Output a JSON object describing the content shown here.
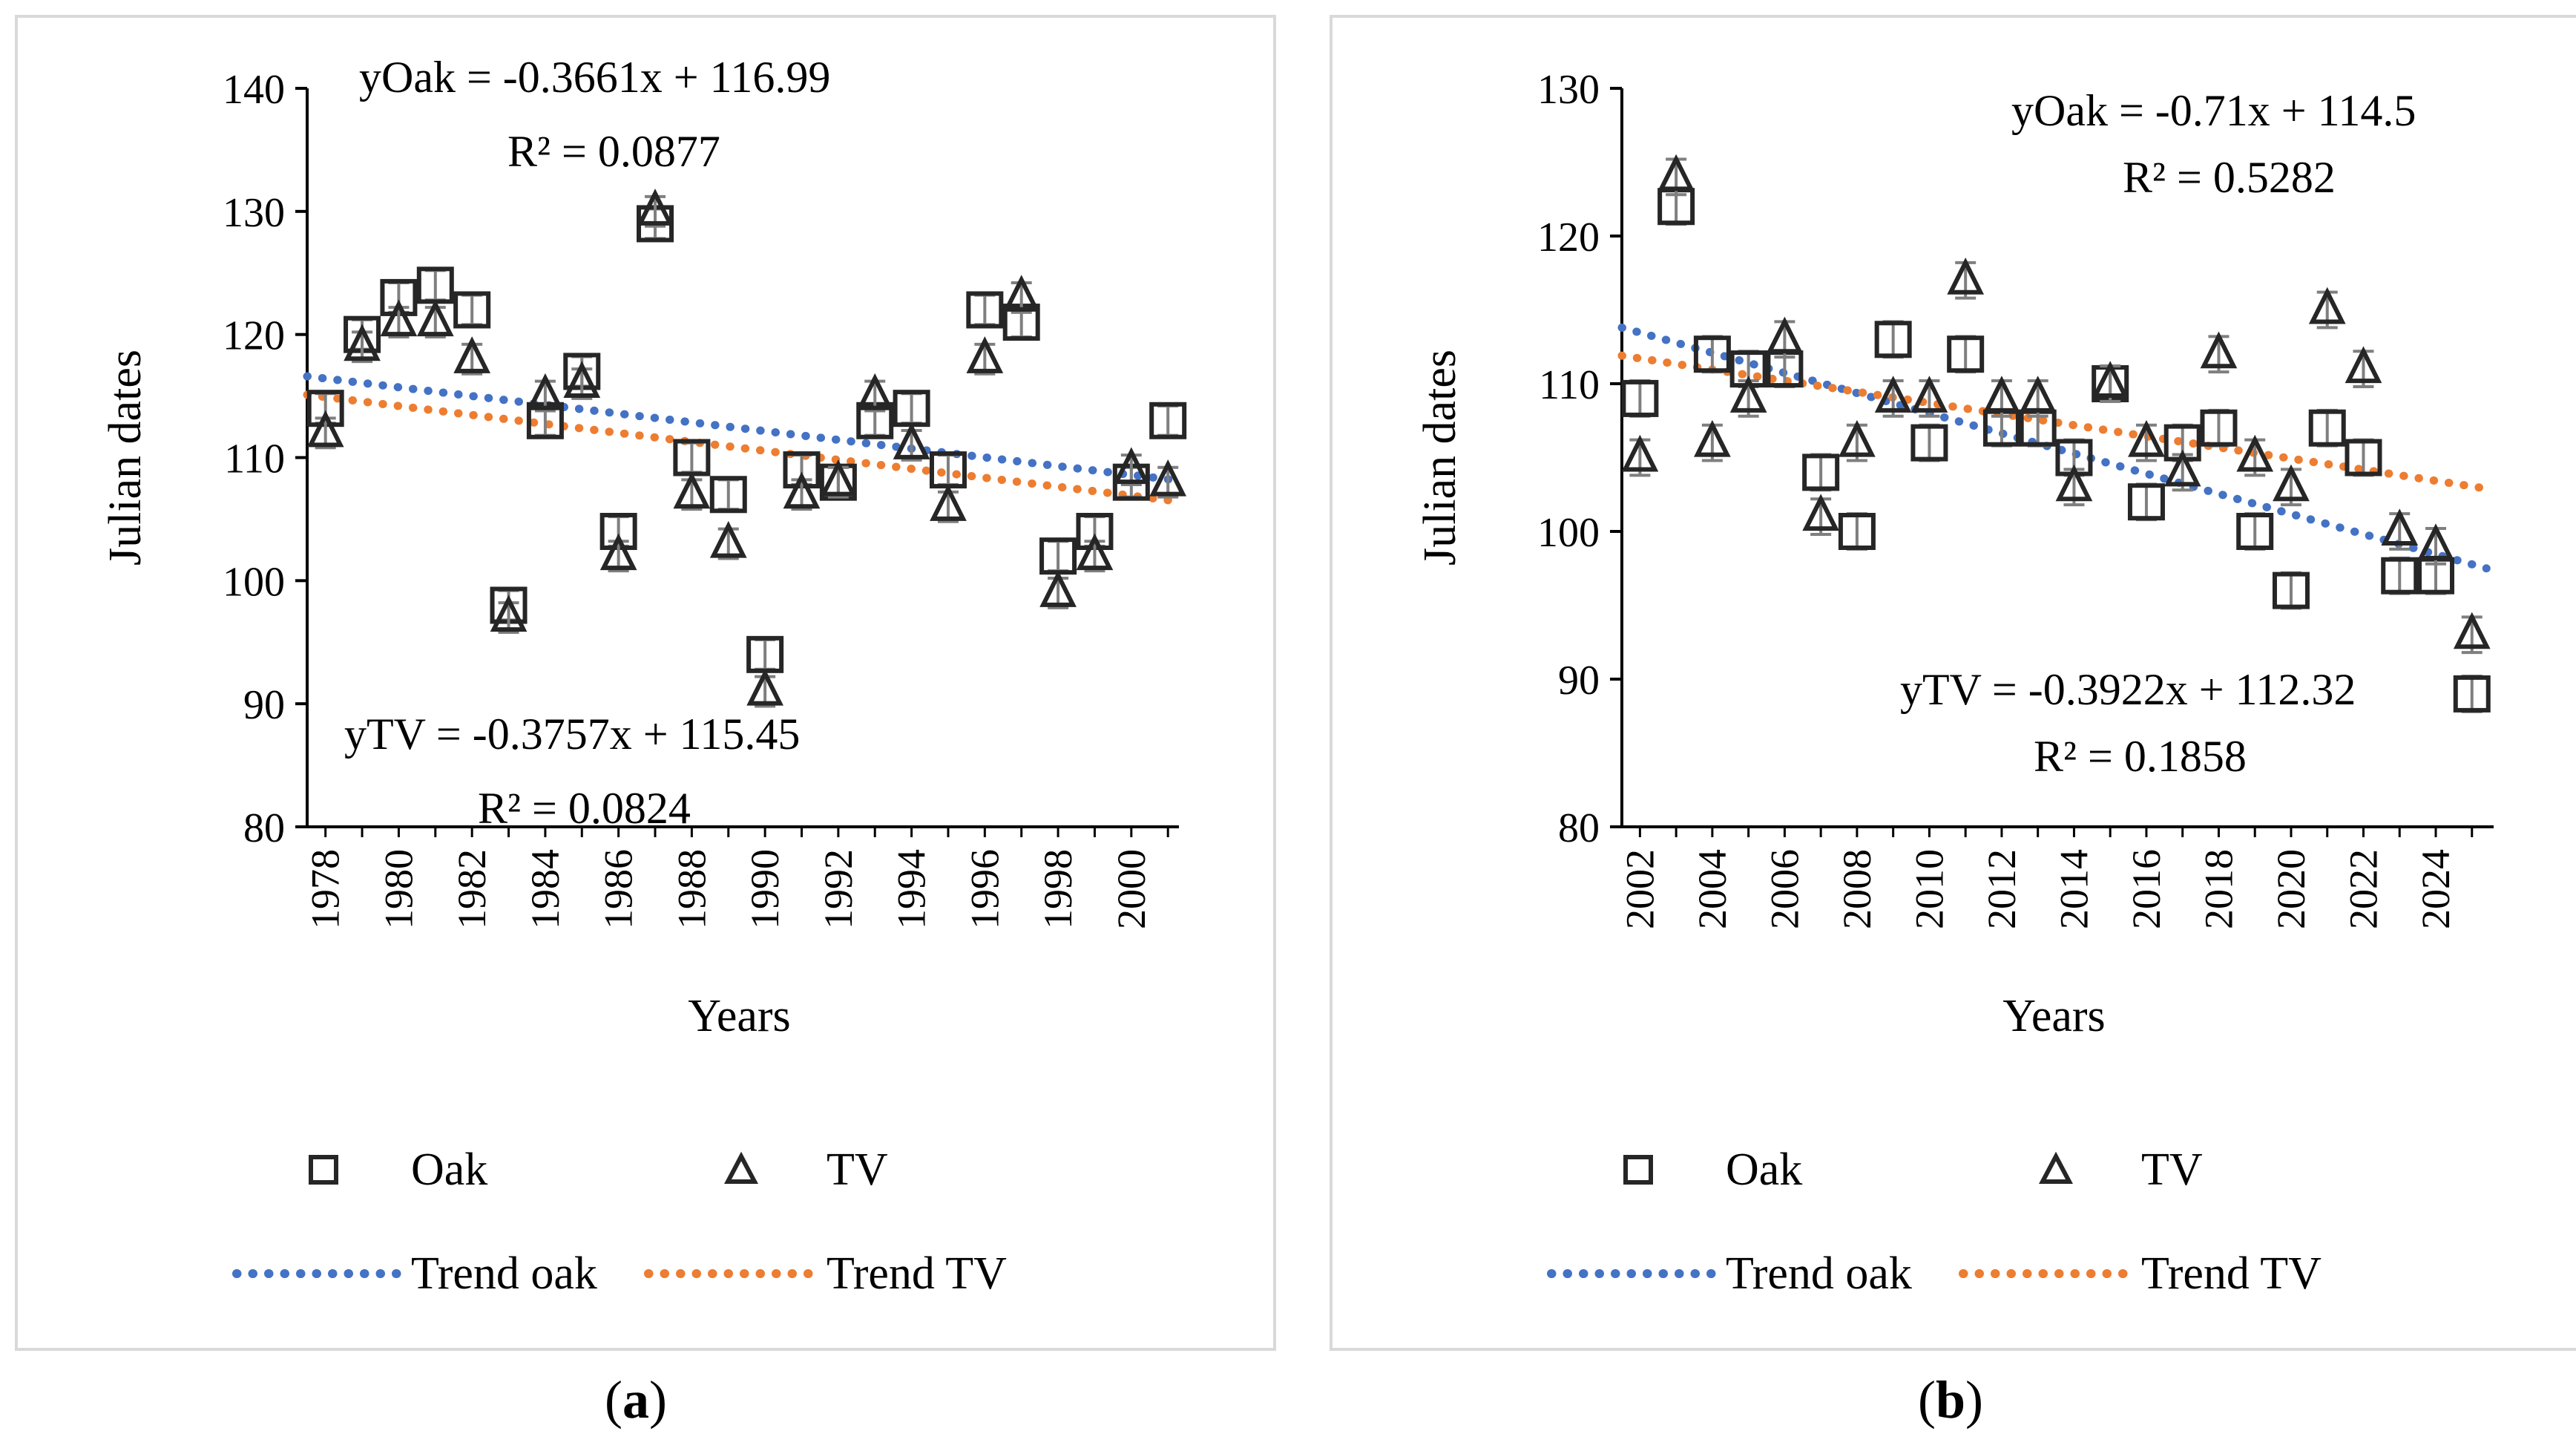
{
  "chart_data": [
    {
      "type": "scatter",
      "panel_label": "a",
      "xlabel": "Years",
      "ylabel": "Julian dates",
      "ylim": [
        80,
        140
      ],
      "yticks": [
        80,
        90,
        100,
        110,
        120,
        130,
        140
      ],
      "xlim": [
        1977.5,
        2001.3
      ],
      "xticks": [
        "1978",
        "1980",
        "1982",
        "1984",
        "1986",
        "1988",
        "1990",
        "1992",
        "1994",
        "1996",
        "1998",
        "2000"
      ],
      "years": [
        1978,
        1979,
        1980,
        1981,
        1982,
        1983,
        1984,
        1985,
        1986,
        1987,
        1988,
        1989,
        1990,
        1991,
        1992,
        1993,
        1994,
        1995,
        1996,
        1997,
        1998,
        1999,
        2000,
        2001
      ],
      "series": [
        {
          "name": "Oak",
          "marker": "square",
          "error": 1.2,
          "values": [
            114,
            120,
            123,
            124,
            122,
            98,
            113,
            117,
            104,
            129,
            110,
            107,
            94,
            109,
            108,
            113,
            114,
            109,
            122,
            121,
            102,
            104,
            108,
            113
          ]
        },
        {
          "name": "TV",
          "marker": "triangle",
          "error": 1.2,
          "values": [
            112,
            119,
            121,
            121,
            118,
            97,
            115,
            116,
            102,
            130,
            107,
            103,
            91,
            107,
            108,
            115,
            111,
            106,
            118,
            123,
            99,
            102,
            109,
            108
          ]
        }
      ],
      "trends": [
        {
          "name": "Trend oak",
          "color": "#4472c4",
          "start": 116.6,
          "end": 108.2
        },
        {
          "name": "Trend TV",
          "color": "#ed7d31",
          "start": 115.1,
          "end": 106.5
        }
      ],
      "equations": {
        "oak_eq": "yOak = -0.3661x + 116.99",
        "oak_r2": "R² = 0.0877",
        "tv_eq": "yTV = -0.3757x + 115.45",
        "tv_r2": "R² = 0.0824"
      },
      "legend": {
        "oak": "Oak",
        "tv": "TV",
        "trend_oak": "Trend oak",
        "trend_tv": "Trend TV"
      }
    },
    {
      "type": "scatter",
      "panel_label": "b",
      "xlabel": "Years",
      "ylabel": "Julian dates",
      "ylim": [
        80,
        130
      ],
      "yticks": [
        80,
        90,
        100,
        110,
        120,
        130
      ],
      "xlim": [
        2001.5,
        2025.6
      ],
      "xticks": [
        "2002",
        "2004",
        "2006",
        "2008",
        "2010",
        "2012",
        "2014",
        "2016",
        "2018",
        "2020",
        "2022",
        "2024"
      ],
      "years": [
        2002,
        2003,
        2004,
        2005,
        2006,
        2007,
        2008,
        2009,
        2010,
        2011,
        2012,
        2013,
        2014,
        2015,
        2016,
        2017,
        2018,
        2019,
        2020,
        2021,
        2022,
        2023,
        2024,
        2025
      ],
      "series": [
        {
          "name": "Oak",
          "marker": "square",
          "error": 1.2,
          "values": [
            109,
            122,
            112,
            111,
            111,
            104,
            100,
            113,
            106,
            112,
            107,
            107,
            105,
            110,
            102,
            106,
            107,
            100,
            96,
            107,
            105,
            97,
            97,
            89
          ]
        },
        {
          "name": "TV",
          "marker": "triangle",
          "error": 1.2,
          "values": [
            105,
            124,
            106,
            109,
            113,
            101,
            106,
            109,
            109,
            117,
            109,
            109,
            103,
            110,
            106,
            104,
            112,
            105,
            103,
            115,
            111,
            100,
            99,
            93
          ]
        }
      ],
      "trends": [
        {
          "name": "Trend oak",
          "color": "#4472c4",
          "start": 113.8,
          "end": 97.5
        },
        {
          "name": "Trend TV",
          "color": "#ed7d31",
          "start": 111.9,
          "end": 102.9
        }
      ],
      "equations": {
        "oak_eq": "yOak = -0.71x + 114.5",
        "oak_r2": "R² = 0.5282",
        "tv_eq": "yTV = -0.3922x + 112.32",
        "tv_r2": "R² = 0.1858"
      },
      "legend": {
        "oak": "Oak",
        "tv": "TV",
        "trend_oak": "Trend oak",
        "trend_tv": "Trend TV"
      }
    }
  ]
}
